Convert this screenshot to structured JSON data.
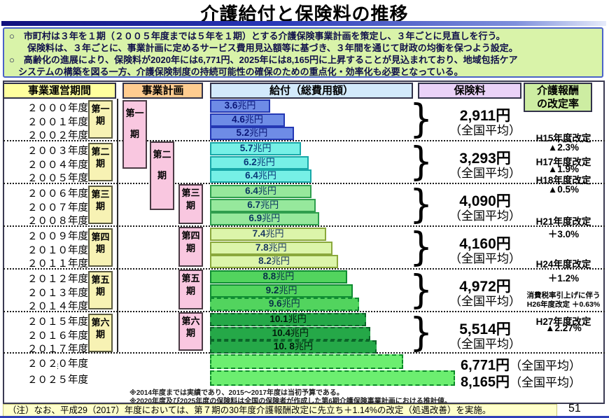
{
  "title": "介護給付と保険料の推移",
  "intro": {
    "lines": [
      "○　市町村は３年を１期（２００５年度までは５年を１期）とする介護保険事業計画を策定し、３年ごとに見直しを行う。",
      "　　保険料は、３年ごとに、事業計画に定めるサービス費用見込額等に基づき、３年間を通じて財政の均衡を保つよう設定。",
      "○　高齢化の進展により、保険料が2020年には6,771円、2025年には8,165円に上昇することが見込まれており、地域包括ケア",
      "　システムの構築を図る一方、介護保険制度の持続可能性の確保のための重点化・効率化も必要となっている。"
    ]
  },
  "headers": {
    "operation_period": "事業運営期間",
    "business_plan": "事業計画",
    "benefits": "給付（総費用額）",
    "premium": "保険料",
    "revision_rate_line1": "介護報酬",
    "revision_rate_line2": "の改定率"
  },
  "glyphs": {
    "brace": "}",
    "ellipsis": "⋮"
  },
  "sections": [
    {
      "op_period": "第一期",
      "years": [
        "２０００年度",
        "２００１年度",
        "２００２年度"
      ],
      "fill": "#6e8ce6",
      "border": "#2438b4",
      "text": "#0a1678",
      "bars": [
        {
          "v": 3.6,
          "num": "3.6",
          "unit": "兆円",
          "dashed": false
        },
        {
          "v": 4.6,
          "num": "4.6",
          "unit": "兆円",
          "dashed": false
        },
        {
          "v": 5.2,
          "num": "5.2",
          "unit": "兆円",
          "dashed": false
        }
      ],
      "premium": {
        "amount": "2,911円",
        "note": "（全国平均）"
      }
    },
    {
      "op_period": "第二期",
      "years": [
        "２００３年度",
        "２００４年度",
        "２００５年度"
      ],
      "fill": "#76f0e6",
      "border": "#18a8a8",
      "text": "#083878",
      "bars": [
        {
          "v": 5.7,
          "num": "5.7",
          "unit": "兆円",
          "dashed": false
        },
        {
          "v": 6.2,
          "num": "6.2",
          "unit": "兆円",
          "dashed": false
        },
        {
          "v": 6.4,
          "num": "6.4",
          "unit": "兆円",
          "dashed": false
        }
      ],
      "premium": {
        "amount": "3,293円",
        "note": "（全国平均）"
      }
    },
    {
      "op_period": "第三期",
      "years": [
        "２００６年度",
        "２００７年度",
        "２００８年度"
      ],
      "fill": "#96e89c",
      "border": "#2f9e4e",
      "text": "#0a3860",
      "bars": [
        {
          "v": 6.4,
          "num": "6.4",
          "unit": "兆円",
          "dashed": false
        },
        {
          "v": 6.7,
          "num": "6.7",
          "unit": "兆円",
          "dashed": false
        },
        {
          "v": 6.9,
          "num": "6.9",
          "unit": "兆円",
          "dashed": false
        }
      ],
      "premium": {
        "amount": "4,090円",
        "note": "（全国平均）"
      }
    },
    {
      "op_period": "第四期",
      "years": [
        "２００９年度",
        "２０１０年度",
        "２０１１年度"
      ],
      "fill": "#dcf5aa",
      "border": "#8aa83c",
      "text": "#1a3860",
      "bars": [
        {
          "v": 7.4,
          "num": "7.4",
          "unit": "兆円",
          "dashed": false
        },
        {
          "v": 7.8,
          "num": "7.8",
          "unit": "兆円",
          "dashed": false
        },
        {
          "v": 8.2,
          "num": "8.2",
          "unit": "兆円",
          "dashed": false
        }
      ],
      "premium": {
        "amount": "4,160円",
        "note": "（全国平均）"
      }
    },
    {
      "op_period": "第五期",
      "years": [
        "２０１２年度",
        "２０１３年度",
        "２０１４年度"
      ],
      "fill": "#52d45e",
      "border": "#0f8c32",
      "text": "#083048",
      "bars": [
        {
          "v": 8.8,
          "num": "8.8",
          "unit": "兆円",
          "dashed": false
        },
        {
          "v": 9.2,
          "num": "9.2",
          "unit": "兆円",
          "dashed": false
        },
        {
          "v": 9.6,
          "num": "9.6",
          "unit": "兆円",
          "dashed": true
        }
      ],
      "premium": {
        "amount": "4,972円",
        "note": "（全国平均）"
      }
    },
    {
      "op_period": "第六期",
      "years": [
        "２０１５年度",
        "２０１６年度",
        "２０１７年度"
      ],
      "fill": "#25a848",
      "border": "#0a6428",
      "text": "#00180a",
      "bars": [
        {
          "v": 10.1,
          "num": "10.1",
          "unit": "兆円",
          "dashed": true
        },
        {
          "v": 10.4,
          "num": "10.4",
          "unit": "兆円",
          "dashed": true
        },
        {
          "v": 10.8,
          "num": "10. 8",
          "unit": "兆円",
          "dashed": true
        }
      ],
      "premium": {
        "amount": "5,514円",
        "note": "（全国平均）"
      }
    }
  ],
  "plan_boxes": [
    {
      "label": "第一期"
    },
    {
      "label": "第二期"
    },
    {
      "label": "第三期"
    },
    {
      "label": "第四期"
    },
    {
      "label": "第五期"
    },
    {
      "label": "第六期"
    }
  ],
  "projection_style": {
    "fill": "#6cee70",
    "border": "#0c8c28"
  },
  "projection_rows": [
    {
      "year": "２０２０年度",
      "v": 12.6,
      "premium_amount": "6,771円",
      "premium_note": "（全国平均）"
    },
    {
      "year": "２０２５年度",
      "v": 16.1,
      "premium_amount": "8,165円",
      "premium_note": "（全国平均）"
    }
  ],
  "revision_rates": [
    {
      "text": "H15年度改定",
      "small": false
    },
    {
      "text": "▲2.3%",
      "small": false
    },
    {
      "text": "H17年度改定",
      "small": false
    },
    {
      "text": "▲1.9%",
      "small": false
    },
    {
      "text": "H18年度改定",
      "small": false
    },
    {
      "text": "▲0.5%",
      "small": false
    },
    {
      "text": "H21年度改定",
      "small": false
    },
    {
      "text": "＋3.0%",
      "small": false
    },
    {
      "text": "H24年度改定",
      "small": false
    },
    {
      "text": "＋1.2%",
      "small": false
    },
    {
      "text": "消費税率引上げに伴う",
      "small": true
    },
    {
      "text": "H26年度改定 ＋0.63%",
      "small": true
    },
    {
      "text": "H27年度改定",
      "small": false
    },
    {
      "text": "▲2.27%",
      "small": false
    }
  ],
  "footnotes": [
    "※2014年度までは実績であり、2015～2017年度は当初予算である。",
    "※2020年度及び2025年度の保険料は全国の保険者が作成した第6期介護保険事業計画における推計値。"
  ],
  "bottom_note": "（注）なお、平成29（2017）年度においては、第７期の30年度介護報酬改定に先立ち＋1.14%の改定（処遇改善）を実施。",
  "page_number": "51",
  "chart_data": {
    "type": "bar",
    "title": "給付（総費用額）",
    "unit": "兆円",
    "x": [
      "2000",
      "2001",
      "2002",
      "2003",
      "2004",
      "2005",
      "2006",
      "2007",
      "2008",
      "2009",
      "2010",
      "2011",
      "2012",
      "2013",
      "2014",
      "2015",
      "2016",
      "2017",
      "2020",
      "2025"
    ],
    "values": [
      3.6,
      4.6,
      5.2,
      5.7,
      6.2,
      6.4,
      6.4,
      6.7,
      6.9,
      7.4,
      7.8,
      8.2,
      8.8,
      9.2,
      9.6,
      10.1,
      10.4,
      10.8,
      12.6,
      16.1
    ],
    "unlabeled_estimates": {
      "2020": 12.6,
      "2025": 16.1
    },
    "dashed_projection_x": [
      "2014",
      "2015",
      "2016",
      "2017",
      "2020",
      "2025"
    ],
    "premiums": [
      {
        "period": "第一期",
        "years": "2000-2002",
        "amount_yen": 2911,
        "note": "全国平均"
      },
      {
        "period": "第二期",
        "years": "2003-2005",
        "amount_yen": 3293,
        "note": "全国平均"
      },
      {
        "period": "第三期",
        "years": "2006-2008",
        "amount_yen": 4090,
        "note": "全国平均"
      },
      {
        "period": "第四期",
        "years": "2009-2011",
        "amount_yen": 4160,
        "note": "全国平均"
      },
      {
        "period": "第五期",
        "years": "2012-2014",
        "amount_yen": 4972,
        "note": "全国平均"
      },
      {
        "period": "第六期",
        "years": "2015-2017",
        "amount_yen": 5514,
        "note": "全国平均"
      },
      {
        "period": "推計",
        "years": "2020",
        "amount_yen": 6771,
        "note": "全国平均"
      },
      {
        "period": "推計",
        "years": "2025",
        "amount_yen": 8165,
        "note": "全国平均"
      }
    ],
    "revision_rates": [
      {
        "year": "H15",
        "rate": "▲2.3%"
      },
      {
        "year": "H17",
        "rate": "▲1.9%"
      },
      {
        "year": "H18",
        "rate": "▲0.5%"
      },
      {
        "year": "H21",
        "rate": "＋3.0%"
      },
      {
        "year": "H24",
        "rate": "＋1.2%"
      },
      {
        "year": "H26",
        "rate": "＋0.63%",
        "note": "消費税率引上げに伴う"
      },
      {
        "year": "H27",
        "rate": "▲2.27%"
      }
    ]
  }
}
